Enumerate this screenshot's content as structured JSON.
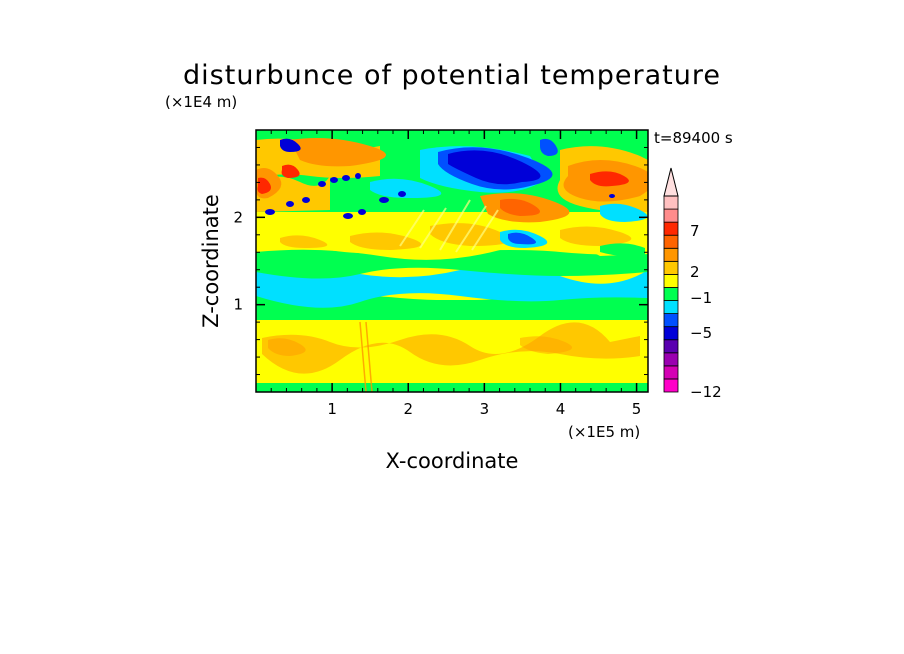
{
  "chart_data": {
    "type": "heatmap",
    "title": "disturbunce of potential temperature",
    "xlabel": "X-coordinate",
    "ylabel": "Z-coordinate",
    "x_unit": "(×1E5 m)",
    "y_unit": "(×1E4 m)",
    "time_label": "t=89400 s",
    "xlim": [
      0,
      5.15
    ],
    "ylim": [
      0,
      3.0
    ],
    "x_ticks": [
      "1",
      "2",
      "3",
      "4",
      "5"
    ],
    "y_ticks": [
      "1",
      "2"
    ],
    "colorbar": {
      "tick_labels": [
        "7",
        "2",
        "−1",
        "−5",
        "−12"
      ],
      "colors": [
        "#ff00c8",
        "#d400b4",
        "#9a00b0",
        "#5a00b0",
        "#0000d8",
        "#0050ff",
        "#00e0ff",
        "#00ff50",
        "#ffff00",
        "#ffc800",
        "#ff9600",
        "#ff6400",
        "#ff2800",
        "#ff8c8c",
        "#ffc0c0"
      ],
      "extend": "max"
    },
    "bands": [
      {
        "z_range": [
          0.0,
          0.07
        ],
        "level": "green"
      },
      {
        "z_range": [
          0.07,
          0.65
        ],
        "level": "yellow-orange"
      },
      {
        "z_range": [
          0.65,
          0.95
        ],
        "level": "green"
      },
      {
        "z_range": [
          0.95,
          1.35
        ],
        "level": "cyan"
      },
      {
        "z_range": [
          1.35,
          1.6
        ],
        "level": "green"
      },
      {
        "z_range": [
          1.6,
          2.2
        ],
        "level": "yellow"
      },
      {
        "z_range": [
          2.2,
          3.0
        ],
        "level": "mixed orange/green/blue"
      }
    ],
    "features": [
      {
        "x": 3.05,
        "z": 2.6,
        "level": "dark blue"
      },
      {
        "x": 4.55,
        "z": 2.45,
        "level": "red"
      },
      {
        "x": 0.45,
        "z": 2.5,
        "level": "red"
      },
      {
        "x": 3.35,
        "z": 2.05,
        "level": "orange"
      }
    ]
  }
}
